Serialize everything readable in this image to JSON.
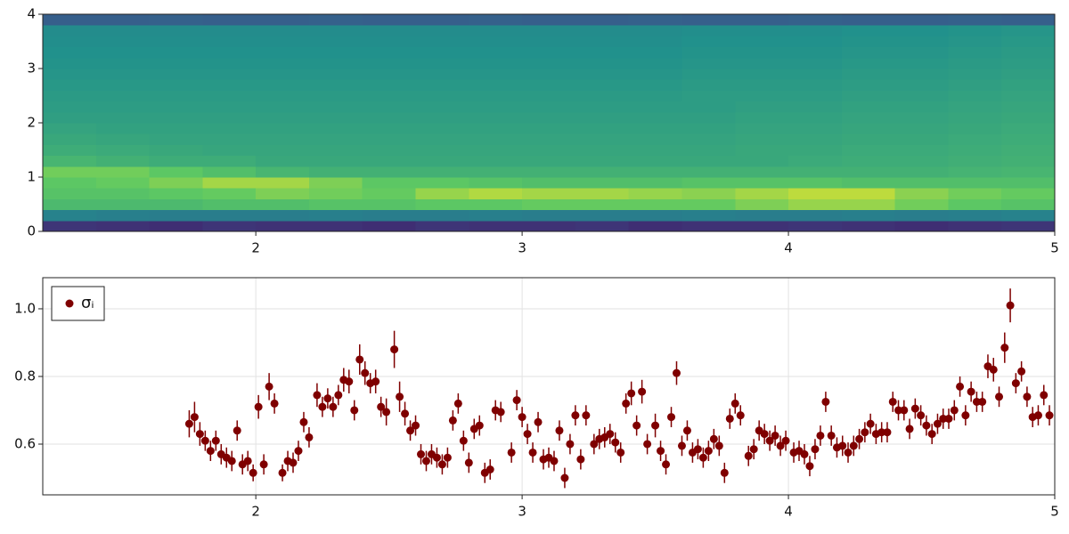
{
  "chart_data": [
    {
      "type": "heatmap",
      "colormap": "viridis",
      "clim": [
        0,
        1
      ],
      "xbins": [
        1.2,
        1.4,
        1.6,
        1.8,
        2.0,
        2.2,
        2.4,
        2.6,
        2.8,
        3.0,
        3.2,
        3.4,
        3.6,
        3.8,
        4.0,
        4.2,
        4.4,
        4.6,
        4.8,
        5.0
      ],
      "ybins": [
        0,
        0.2,
        0.4,
        0.6,
        0.8,
        1.0,
        1.2,
        1.4,
        1.6,
        1.8,
        2.0,
        2.2,
        2.4,
        2.6,
        2.8,
        3.0,
        3.2,
        3.4,
        3.6,
        3.8,
        4.0
      ],
      "z": [
        [
          0.16,
          0.15,
          0.14,
          0.16,
          0.15,
          0.15,
          0.14,
          0.16,
          0.15,
          0.15,
          0.16,
          0.14,
          0.15,
          0.15,
          0.16,
          0.15,
          0.14,
          0.15,
          0.16
        ],
        [
          0.44,
          0.43,
          0.42,
          0.42,
          0.42,
          0.43,
          0.42,
          0.42,
          0.43,
          0.42,
          0.42,
          0.42,
          0.43,
          0.42,
          0.42,
          0.43,
          0.42,
          0.43,
          0.44
        ],
        [
          0.68,
          0.68,
          0.68,
          0.7,
          0.7,
          0.72,
          0.72,
          0.74,
          0.74,
          0.76,
          0.76,
          0.76,
          0.76,
          0.8,
          0.84,
          0.84,
          0.78,
          0.74,
          0.72
        ],
        [
          0.72,
          0.72,
          0.74,
          0.76,
          0.8,
          0.78,
          0.76,
          0.84,
          0.88,
          0.86,
          0.86,
          0.84,
          0.82,
          0.86,
          0.9,
          0.9,
          0.82,
          0.78,
          0.76
        ],
        [
          0.74,
          0.76,
          0.8,
          0.86,
          0.86,
          0.8,
          0.74,
          0.74,
          0.72,
          0.7,
          0.7,
          0.7,
          0.72,
          0.72,
          0.72,
          0.7,
          0.7,
          0.7,
          0.7
        ],
        [
          0.78,
          0.78,
          0.74,
          0.7,
          0.66,
          0.64,
          0.64,
          0.64,
          0.64,
          0.64,
          0.64,
          0.64,
          0.64,
          0.64,
          0.64,
          0.64,
          0.64,
          0.65,
          0.66
        ],
        [
          0.66,
          0.64,
          0.62,
          0.62,
          0.6,
          0.6,
          0.6,
          0.6,
          0.6,
          0.6,
          0.6,
          0.6,
          0.6,
          0.6,
          0.61,
          0.62,
          0.62,
          0.63,
          0.64
        ],
        [
          0.62,
          0.61,
          0.6,
          0.59,
          0.59,
          0.59,
          0.59,
          0.59,
          0.59,
          0.59,
          0.59,
          0.59,
          0.59,
          0.6,
          0.6,
          0.61,
          0.61,
          0.62,
          0.63
        ],
        [
          0.6,
          0.59,
          0.58,
          0.58,
          0.58,
          0.58,
          0.58,
          0.58,
          0.58,
          0.58,
          0.58,
          0.58,
          0.58,
          0.59,
          0.59,
          0.6,
          0.6,
          0.61,
          0.62
        ],
        [
          0.58,
          0.57,
          0.57,
          0.57,
          0.57,
          0.57,
          0.57,
          0.57,
          0.57,
          0.57,
          0.57,
          0.57,
          0.57,
          0.58,
          0.58,
          0.59,
          0.59,
          0.6,
          0.61
        ],
        [
          0.56,
          0.56,
          0.56,
          0.56,
          0.56,
          0.56,
          0.56,
          0.56,
          0.56,
          0.56,
          0.56,
          0.56,
          0.56,
          0.57,
          0.57,
          0.58,
          0.58,
          0.59,
          0.6
        ],
        [
          0.55,
          0.55,
          0.55,
          0.55,
          0.55,
          0.55,
          0.55,
          0.55,
          0.55,
          0.55,
          0.55,
          0.55,
          0.55,
          0.56,
          0.56,
          0.57,
          0.57,
          0.58,
          0.59
        ],
        [
          0.54,
          0.54,
          0.54,
          0.54,
          0.54,
          0.54,
          0.54,
          0.54,
          0.54,
          0.54,
          0.54,
          0.54,
          0.55,
          0.55,
          0.55,
          0.56,
          0.56,
          0.57,
          0.58
        ],
        [
          0.53,
          0.53,
          0.53,
          0.53,
          0.53,
          0.53,
          0.53,
          0.53,
          0.53,
          0.53,
          0.53,
          0.53,
          0.54,
          0.54,
          0.54,
          0.55,
          0.55,
          0.56,
          0.57
        ],
        [
          0.52,
          0.52,
          0.52,
          0.52,
          0.52,
          0.52,
          0.52,
          0.52,
          0.52,
          0.52,
          0.52,
          0.52,
          0.53,
          0.53,
          0.53,
          0.54,
          0.54,
          0.55,
          0.56
        ],
        [
          0.51,
          0.51,
          0.51,
          0.51,
          0.51,
          0.51,
          0.51,
          0.51,
          0.51,
          0.51,
          0.51,
          0.51,
          0.52,
          0.52,
          0.52,
          0.53,
          0.53,
          0.54,
          0.55
        ],
        [
          0.5,
          0.5,
          0.5,
          0.5,
          0.5,
          0.5,
          0.5,
          0.5,
          0.5,
          0.5,
          0.5,
          0.5,
          0.51,
          0.51,
          0.51,
          0.52,
          0.52,
          0.53,
          0.54
        ],
        [
          0.49,
          0.49,
          0.49,
          0.49,
          0.49,
          0.49,
          0.49,
          0.49,
          0.49,
          0.49,
          0.49,
          0.49,
          0.5,
          0.5,
          0.5,
          0.51,
          0.51,
          0.52,
          0.53
        ],
        [
          0.48,
          0.48,
          0.48,
          0.48,
          0.48,
          0.48,
          0.48,
          0.48,
          0.48,
          0.48,
          0.48,
          0.48,
          0.49,
          0.49,
          0.49,
          0.5,
          0.5,
          0.51,
          0.52
        ],
        [
          0.3,
          0.3,
          0.31,
          0.3,
          0.3,
          0.31,
          0.3,
          0.3,
          0.31,
          0.3,
          0.3,
          0.31,
          0.3,
          0.3,
          0.31,
          0.3,
          0.3,
          0.31,
          0.3
        ]
      ],
      "xlim": [
        1.2,
        5
      ],
      "xticks": [
        2,
        3,
        4,
        5
      ],
      "ylim": [
        0,
        4
      ],
      "yticks": [
        0,
        1,
        2,
        3,
        4
      ],
      "grid": false
    },
    {
      "type": "errorbar",
      "legend": "top-left",
      "grid": true,
      "xlim": [
        1.2,
        5
      ],
      "xticks": [
        2,
        3,
        4,
        5
      ],
      "ylim": [
        0.45,
        1.092
      ],
      "yticks": [
        0.6,
        0.8,
        {
          "value": 1,
          "label": "1.0"
        }
      ],
      "series": [
        {
          "name": "σᵢ",
          "color": "#7f0000",
          "x": [
            1.75,
            1.77,
            1.79,
            1.81,
            1.83,
            1.85,
            1.87,
            1.89,
            1.91,
            1.93,
            1.95,
            1.97,
            1.99,
            2.01,
            2.03,
            2.05,
            2.07,
            2.1,
            2.12,
            2.14,
            2.16,
            2.18,
            2.2,
            2.23,
            2.25,
            2.27,
            2.29,
            2.31,
            2.33,
            2.35,
            2.37,
            2.39,
            2.41,
            2.43,
            2.45,
            2.47,
            2.49,
            2.52,
            2.54,
            2.56,
            2.58,
            2.6,
            2.62,
            2.64,
            2.66,
            2.68,
            2.7,
            2.72,
            2.74,
            2.76,
            2.78,
            2.8,
            2.82,
            2.84,
            2.86,
            2.88,
            2.9,
            2.92,
            2.96,
            2.98,
            3.0,
            3.02,
            3.04,
            3.06,
            3.08,
            3.1,
            3.12,
            3.14,
            3.16,
            3.18,
            3.2,
            3.22,
            3.24,
            3.27,
            3.29,
            3.31,
            3.33,
            3.35,
            3.37,
            3.39,
            3.41,
            3.43,
            3.45,
            3.47,
            3.5,
            3.52,
            3.54,
            3.56,
            3.58,
            3.6,
            3.62,
            3.64,
            3.66,
            3.68,
            3.7,
            3.72,
            3.74,
            3.76,
            3.78,
            3.8,
            3.82,
            3.85,
            3.87,
            3.89,
            3.91,
            3.93,
            3.95,
            3.97,
            3.99,
            4.02,
            4.04,
            4.06,
            4.08,
            4.1,
            4.12,
            4.14,
            4.161,
            4.182,
            4.203,
            4.224,
            4.245,
            4.266,
            4.287,
            4.308,
            4.329,
            4.35,
            4.371,
            4.392,
            4.413,
            4.434,
            4.455,
            4.476,
            4.497,
            4.518,
            4.539,
            4.56,
            4.581,
            4.602,
            4.623,
            4.644,
            4.665,
            4.686,
            4.707,
            4.728,
            4.749,
            4.77,
            4.791,
            4.812,
            4.833,
            4.854,
            4.875,
            4.896,
            4.917,
            4.938,
            4.959,
            4.98
          ],
          "values": [
            0.66,
            0.68,
            0.63,
            0.61,
            0.58,
            0.61,
            0.57,
            0.56,
            0.55,
            0.64,
            0.54,
            0.55,
            0.515,
            0.71,
            0.54,
            0.77,
            0.72,
            0.515,
            0.55,
            0.545,
            0.58,
            0.665,
            0.62,
            0.745,
            0.71,
            0.735,
            0.71,
            0.745,
            0.79,
            0.785,
            0.7,
            0.85,
            0.81,
            0.78,
            0.785,
            0.71,
            0.695,
            0.88,
            0.74,
            0.69,
            0.64,
            0.655,
            0.57,
            0.55,
            0.57,
            0.56,
            0.54,
            0.56,
            0.67,
            0.72,
            0.61,
            0.545,
            0.645,
            0.655,
            0.515,
            0.525,
            0.7,
            0.695,
            0.575,
            0.73,
            0.68,
            0.63,
            0.575,
            0.665,
            0.555,
            0.56,
            0.55,
            0.64,
            0.5,
            0.6,
            0.685,
            0.555,
            0.685,
            0.6,
            0.615,
            0.62,
            0.63,
            0.605,
            0.575,
            0.72,
            0.75,
            0.655,
            0.755,
            0.6,
            0.655,
            0.58,
            0.54,
            0.68,
            0.81,
            0.595,
            0.64,
            0.575,
            0.585,
            0.56,
            0.58,
            0.615,
            0.595,
            0.515,
            0.675,
            0.72,
            0.685,
            0.565,
            0.585,
            0.64,
            0.63,
            0.61,
            0.625,
            0.595,
            0.61,
            0.575,
            0.58,
            0.57,
            0.535,
            0.585,
            0.625,
            0.725,
            0.625,
            0.59,
            0.595,
            0.575,
            0.595,
            0.615,
            0.635,
            0.66,
            0.63,
            0.635,
            0.635,
            0.725,
            0.7,
            0.7,
            0.645,
            0.705,
            0.685,
            0.655,
            0.63,
            0.66,
            0.675,
            0.675,
            0.7,
            0.77,
            0.685,
            0.755,
            0.725,
            0.725,
            0.83,
            0.82,
            0.74,
            0.885,
            1.01,
            0.78,
            0.815,
            0.74,
            0.68,
            0.685,
            0.745,
            0.685
          ],
          "errors": [
            0.04,
            0.045,
            0.035,
            0.03,
            0.03,
            0.03,
            0.03,
            0.03,
            0.03,
            0.03,
            0.03,
            0.03,
            0.025,
            0.035,
            0.03,
            0.04,
            0.03,
            0.025,
            0.03,
            0.03,
            0.03,
            0.03,
            0.03,
            0.035,
            0.03,
            0.03,
            0.03,
            0.03,
            0.035,
            0.035,
            0.03,
            0.045,
            0.035,
            0.03,
            0.035,
            0.03,
            0.04,
            0.055,
            0.045,
            0.035,
            0.03,
            0.03,
            0.03,
            0.03,
            0.03,
            0.03,
            0.03,
            0.03,
            0.03,
            0.03,
            0.03,
            0.03,
            0.03,
            0.03,
            0.03,
            0.03,
            0.03,
            0.03,
            0.03,
            0.03,
            0.03,
            0.03,
            0.03,
            0.03,
            0.03,
            0.03,
            0.03,
            0.03,
            0.03,
            0.03,
            0.03,
            0.03,
            0.03,
            0.03,
            0.03,
            0.03,
            0.03,
            0.03,
            0.03,
            0.03,
            0.035,
            0.03,
            0.035,
            0.03,
            0.035,
            0.03,
            0.03,
            0.03,
            0.035,
            0.03,
            0.03,
            0.03,
            0.03,
            0.03,
            0.03,
            0.03,
            0.03,
            0.03,
            0.03,
            0.03,
            0.03,
            0.03,
            0.03,
            0.03,
            0.03,
            0.03,
            0.03,
            0.03,
            0.03,
            0.03,
            0.03,
            0.03,
            0.03,
            0.03,
            0.03,
            0.03,
            0.03,
            0.03,
            0.03,
            0.03,
            0.03,
            0.03,
            0.03,
            0.03,
            0.03,
            0.03,
            0.03,
            0.03,
            0.03,
            0.03,
            0.03,
            0.03,
            0.03,
            0.03,
            0.03,
            0.03,
            0.03,
            0.03,
            0.03,
            0.03,
            0.03,
            0.03,
            0.03,
            0.03,
            0.035,
            0.035,
            0.03,
            0.045,
            0.05,
            0.03,
            0.03,
            0.03,
            0.03,
            0.03,
            0.03,
            0.03
          ]
        }
      ]
    }
  ]
}
